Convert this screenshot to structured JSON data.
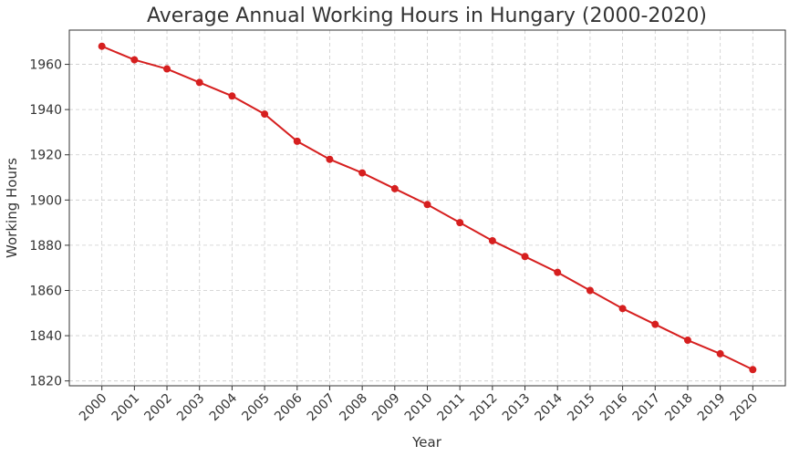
{
  "chart_data": {
    "type": "line",
    "title": "Average Annual Working Hours in Hungary (2000-2020)",
    "x_label": "Year",
    "y_label": "Working Hours",
    "x": [
      2000,
      2001,
      2002,
      2003,
      2004,
      2005,
      2006,
      2007,
      2008,
      2009,
      2010,
      2011,
      2012,
      2013,
      2014,
      2015,
      2016,
      2017,
      2018,
      2019,
      2020
    ],
    "series": [
      {
        "name": "Working Hours",
        "color": "#d61f1f",
        "values": [
          1968,
          1962,
          1958,
          1952,
          1946,
          1938,
          1926,
          1918,
          1912,
          1905,
          1898,
          1890,
          1882,
          1875,
          1868,
          1860,
          1852,
          1845,
          1838,
          1832,
          1825
        ]
      }
    ],
    "xlim": [
      1999,
      2021
    ],
    "xticks": [
      2000,
      2001,
      2002,
      2003,
      2004,
      2005,
      2006,
      2007,
      2008,
      2009,
      2010,
      2011,
      2012,
      2013,
      2014,
      2015,
      2016,
      2017,
      2018,
      2019,
      2020
    ],
    "ylim": [
      1817.85,
      1975.15
    ],
    "yticks": [
      1820,
      1840,
      1860,
      1880,
      1900,
      1920,
      1940,
      1960
    ],
    "grid": true
  }
}
